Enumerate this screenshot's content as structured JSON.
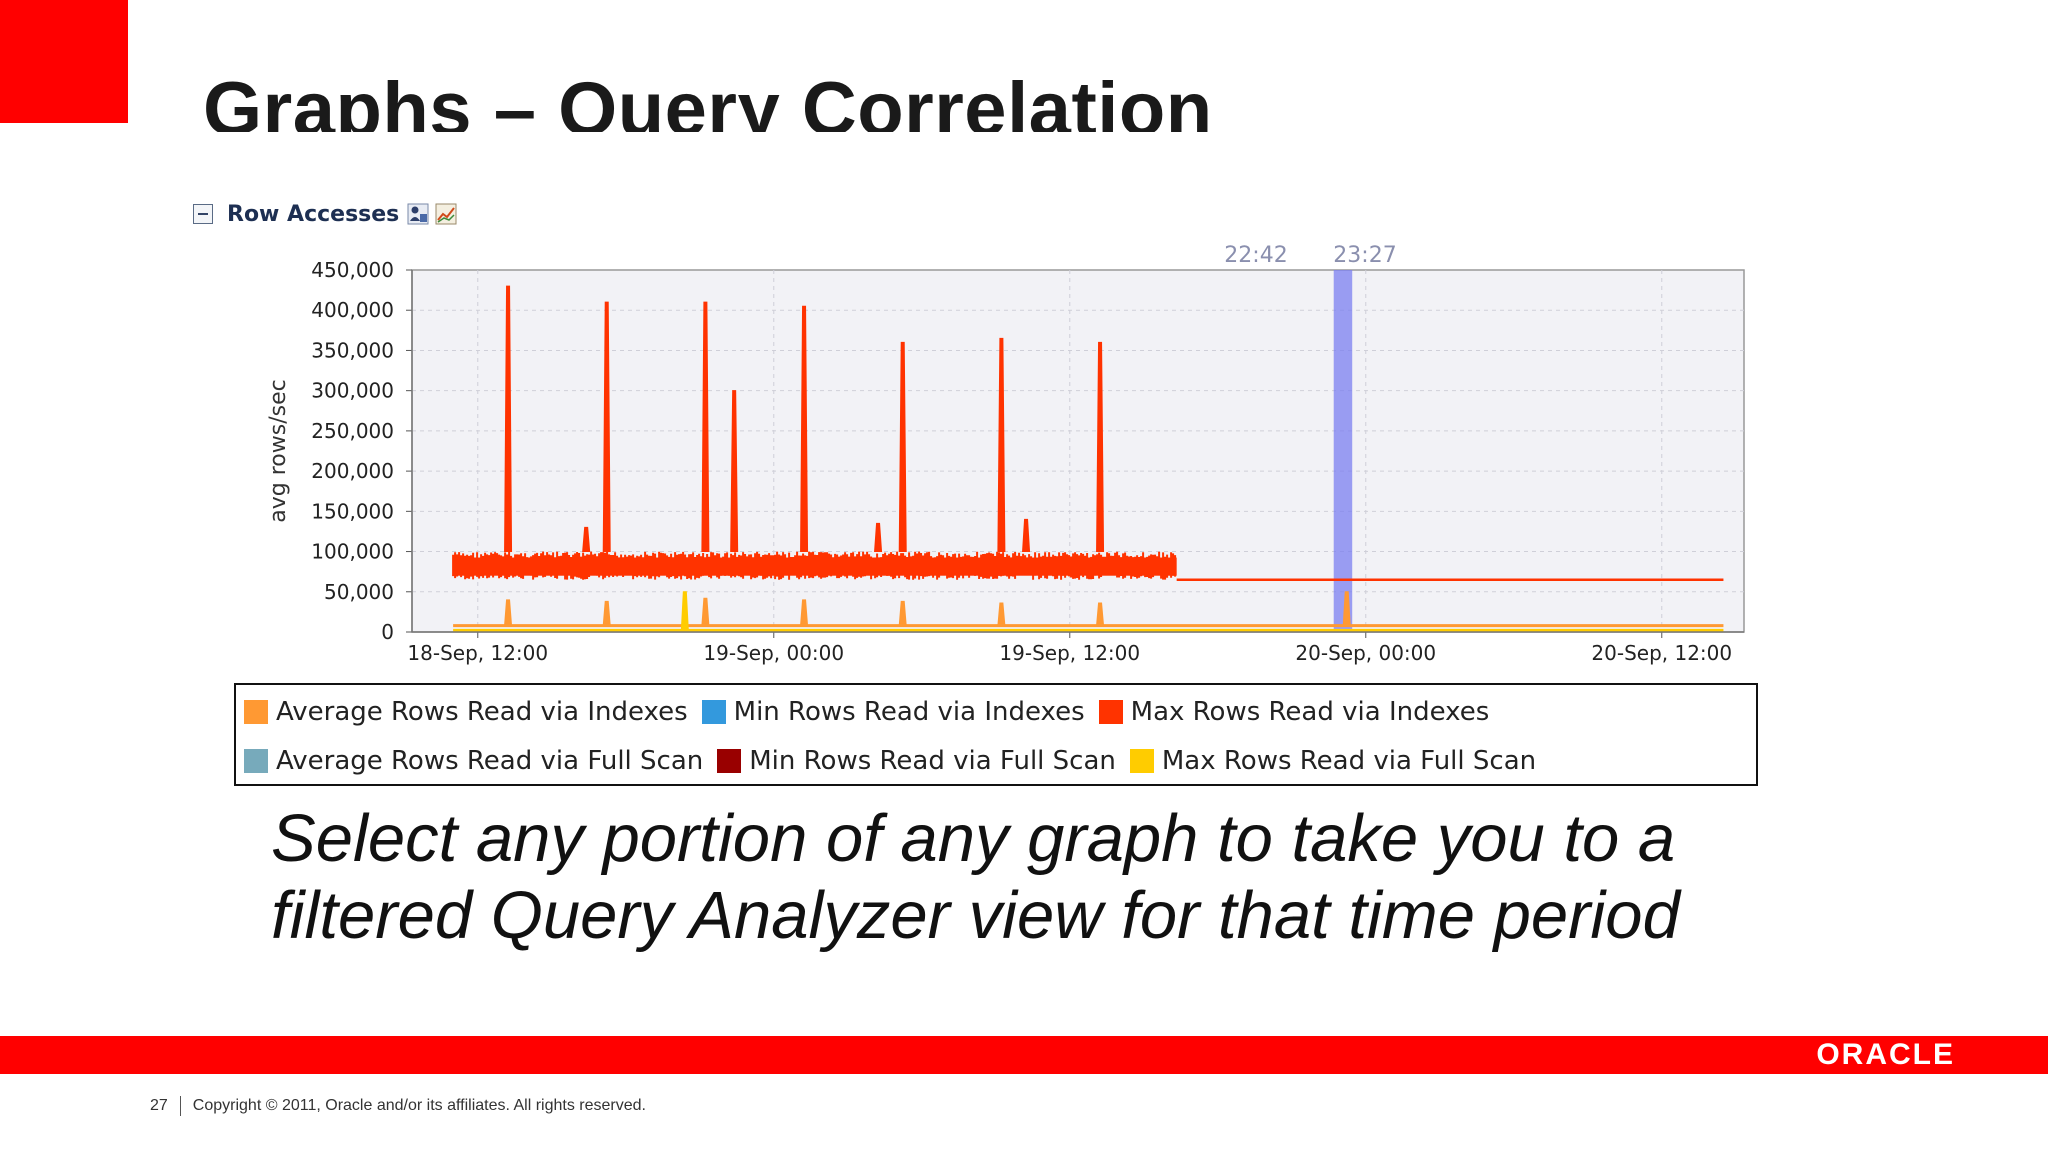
{
  "slide": {
    "title": "Graphs – Query Correlation",
    "caption_line1": "Select any portion of any graph to take you to a",
    "caption_line2": "filtered Query Analyzer view for that time period",
    "page_number": "27",
    "copyright": "Copyright © 2011, Oracle and/or its affiliates. All rights reserved.",
    "logo": "ORACLE",
    "colors": {
      "brand_red": "#ff0000"
    }
  },
  "panel": {
    "title": "Row Accesses",
    "icons": [
      "collapse-icon",
      "user-filter-icon",
      "graph-icon"
    ]
  },
  "chart_data": {
    "type": "line",
    "title": "Row Accesses",
    "ylabel": "avg rows/sec",
    "xlabel": "",
    "ylim": [
      0,
      450000
    ],
    "yticks": [
      0,
      50000,
      100000,
      150000,
      200000,
      250000,
      300000,
      350000,
      400000,
      450000
    ],
    "ytick_labels": [
      "0",
      "50,000",
      "100,000",
      "150,000",
      "200,000",
      "250,000",
      "300,000",
      "350,000",
      "400,000",
      "450,000"
    ],
    "xlim": [
      "18-Sep 09:20",
      "20-Sep 15:20"
    ],
    "xtick_labels": [
      "18-Sep, 12:00",
      "19-Sep, 00:00",
      "19-Sep, 12:00",
      "20-Sep, 00:00",
      "20-Sep, 12:00"
    ],
    "grid": true,
    "selection": {
      "start": "22:42",
      "end": "23:27",
      "color": "#7b7ff0"
    },
    "series": [
      {
        "name": "Max Rows Read via Indexes",
        "color": "#ff3300",
        "band": {
          "x_start": "18-Sep 11:00",
          "x_end": "19-Sep 16:20",
          "low": 65000,
          "high": 100000
        },
        "flat": {
          "x_start": "19-Sep 16:20",
          "x_end": "20-Sep 14:30",
          "value": 65000
        },
        "spikes": [
          {
            "x": "18-Sep 13:10",
            "y": 430000
          },
          {
            "x": "18-Sep 16:20",
            "y": 130000
          },
          {
            "x": "18-Sep 17:10",
            "y": 410000
          },
          {
            "x": "18-Sep 21:10",
            "y": 410000
          },
          {
            "x": "18-Sep 22:20",
            "y": 300000
          },
          {
            "x": "19-Sep 01:10",
            "y": 405000
          },
          {
            "x": "19-Sep 04:10",
            "y": 135000
          },
          {
            "x": "19-Sep 05:10",
            "y": 360000
          },
          {
            "x": "19-Sep 09:10",
            "y": 365000
          },
          {
            "x": "19-Sep 10:10",
            "y": 140000
          },
          {
            "x": "19-Sep 13:10",
            "y": 360000
          }
        ]
      },
      {
        "name": "Average Rows Read via Indexes",
        "color": "#ff9933",
        "base": {
          "x_start": "18-Sep 11:00",
          "x_end": "20-Sep 14:30",
          "value": 8000
        },
        "spikes": [
          {
            "x": "18-Sep 13:10",
            "y": 40000
          },
          {
            "x": "18-Sep 17:10",
            "y": 38000
          },
          {
            "x": "18-Sep 21:10",
            "y": 42000
          },
          {
            "x": "19-Sep 01:10",
            "y": 40000
          },
          {
            "x": "19-Sep 05:10",
            "y": 38000
          },
          {
            "x": "19-Sep 09:10",
            "y": 36000
          },
          {
            "x": "19-Sep 13:10",
            "y": 36000
          },
          {
            "x": "19-Sep 23:10",
            "y": 50000
          }
        ]
      },
      {
        "name": "Max Rows Read via Full Scan",
        "color": "#ffcc00",
        "base": {
          "x_start": "18-Sep 11:00",
          "x_end": "20-Sep 14:30",
          "value": 2000
        },
        "spikes": [
          {
            "x": "18-Sep 20:20",
            "y": 50000
          }
        ]
      },
      {
        "name": "Min Rows Read via Indexes",
        "color": "#3399dd"
      },
      {
        "name": "Average Rows Read via Full Scan",
        "color": "#77aabb"
      },
      {
        "name": "Min Rows Read via Full Scan",
        "color": "#990000"
      }
    ],
    "legend": {
      "placement": "bottom",
      "rows": [
        [
          {
            "label": "Average Rows Read via Indexes",
            "color": "#ff9933"
          },
          {
            "label": "Min Rows Read via Indexes",
            "color": "#3399dd"
          },
          {
            "label": "Max Rows Read via Indexes",
            "color": "#ff3300"
          }
        ],
        [
          {
            "label": "Average Rows Read via Full Scan",
            "color": "#77aabb"
          },
          {
            "label": "Min Rows Read via Full Scan",
            "color": "#990000"
          },
          {
            "label": "Max Rows Read via Full Scan",
            "color": "#ffcc00"
          }
        ]
      ]
    }
  }
}
